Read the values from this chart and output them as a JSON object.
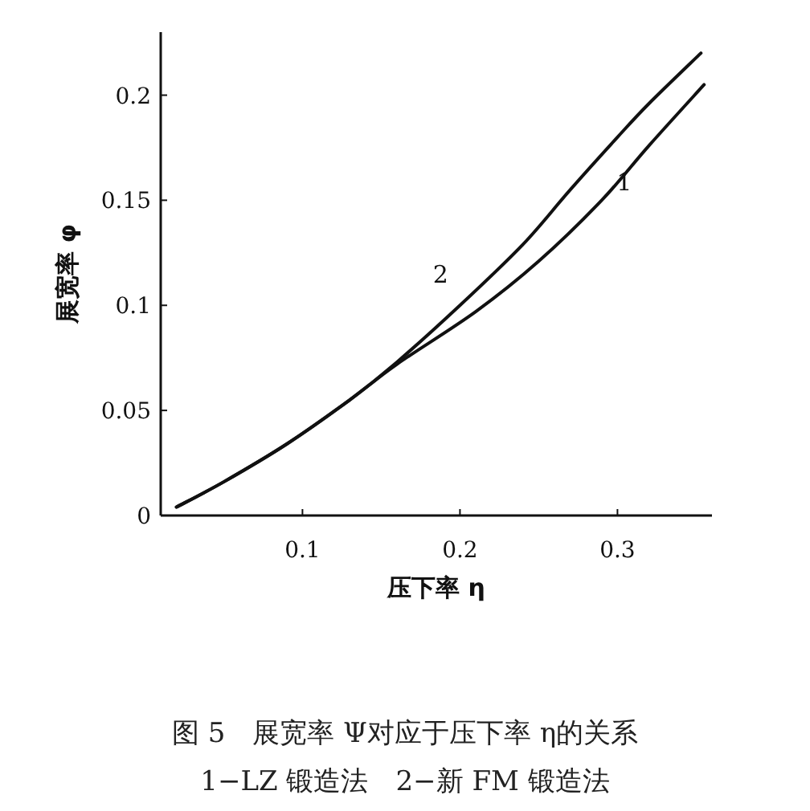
{
  "chart_data": {
    "type": "line",
    "xlabel": "压下率 η",
    "ylabel": "展宽率 φ",
    "xlim": [
      0.01,
      0.36
    ],
    "ylim": [
      0,
      0.23
    ],
    "xticks": [
      0.1,
      0.2,
      0.3
    ],
    "yticks": [
      0,
      0.05,
      0.1,
      0.15,
      0.2
    ],
    "grid": false,
    "marker": "none",
    "line_style": "solid",
    "series": [
      {
        "name": "1",
        "color": "#111111",
        "x": [
          0.02,
          0.05,
          0.09,
          0.13,
          0.16,
          0.21,
          0.25,
          0.29,
          0.32,
          0.355
        ],
        "values": [
          0.004,
          0.016,
          0.034,
          0.055,
          0.072,
          0.097,
          0.121,
          0.15,
          0.176,
          0.205
        ]
      },
      {
        "name": "2",
        "color": "#111111",
        "x": [
          0.02,
          0.05,
          0.09,
          0.13,
          0.16,
          0.2,
          0.24,
          0.27,
          0.3,
          0.32,
          0.353
        ],
        "values": [
          0.004,
          0.016,
          0.034,
          0.055,
          0.073,
          0.1,
          0.129,
          0.155,
          0.18,
          0.196,
          0.22
        ]
      }
    ],
    "annotations": [
      "图 5　展宽率 Ψ对应于压下率 η的关系",
      "1−LZ 锻造法　2−新 FM 锻造法"
    ]
  }
}
